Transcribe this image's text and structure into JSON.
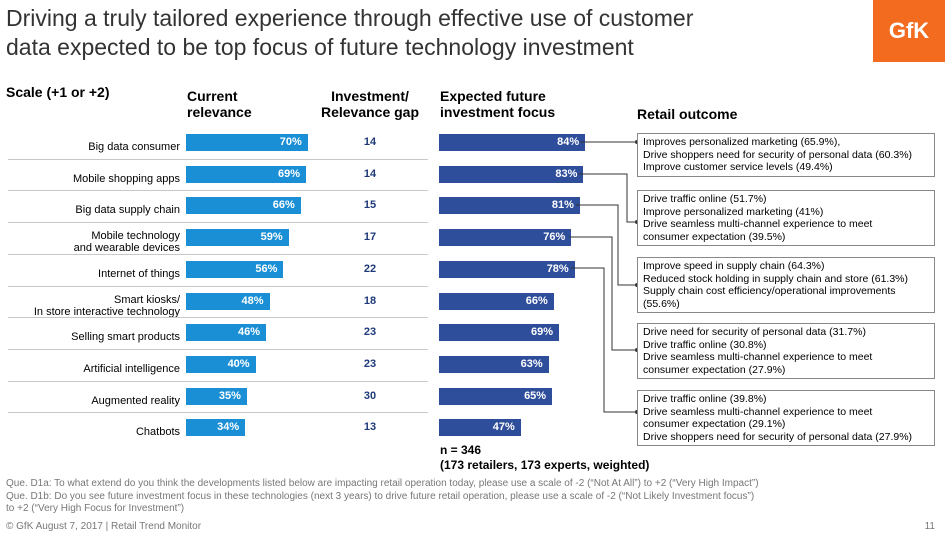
{
  "title_line1": "Driving a truly tailored experience through effective use of customer",
  "title_line2": "data expected to be top focus of future technology investment",
  "logo": "GfK",
  "headers": {
    "scale": "Scale (+1 or +2)",
    "current_l1": "Current",
    "current_l2": "relevance",
    "gap_l1": "Investment/",
    "gap_l2": "Relevance gap",
    "expected_l1": "Expected future",
    "expected_l2": "investment focus",
    "outcome": "Retail outcome"
  },
  "chart_data": {
    "type": "bar",
    "categories": [
      "Big data consumer",
      "Mobile shopping apps",
      "Big data supply chain",
      "Mobile technology and wearable devices",
      "Internet of things",
      "Smart kiosks/ In store interactive technology",
      "Selling smart products",
      "Artificial intelligence",
      "Augmented reality",
      "Chatbots"
    ],
    "label_lines": [
      [
        "Big data consumer"
      ],
      [
        "Mobile shopping apps"
      ],
      [
        "Big data supply chain"
      ],
      [
        "Mobile technology",
        "and wearable devices"
      ],
      [
        "Internet of things"
      ],
      [
        "Smart kiosks/",
        "In store interactive technology"
      ],
      [
        "Selling smart products"
      ],
      [
        "Artificial intelligence"
      ],
      [
        "Augmented reality"
      ],
      [
        "Chatbots"
      ]
    ],
    "series": [
      {
        "name": "Current relevance",
        "values": [
          70,
          69,
          66,
          59,
          56,
          48,
          46,
          40,
          35,
          34
        ],
        "color": "#1b8fd6"
      },
      {
        "name": "Expected future investment focus",
        "values": [
          84,
          83,
          81,
          76,
          78,
          66,
          69,
          63,
          65,
          47
        ],
        "color": "#2e4d9a"
      }
    ],
    "gap": [
      14,
      14,
      15,
      17,
      22,
      18,
      23,
      23,
      30,
      13
    ]
  },
  "outcomes": [
    [
      "Improves personalized marketing (65.9%),",
      "Drive shoppers need for security of personal data (60.3%)",
      "Improve customer service levels (49.4%)"
    ],
    [
      "Drive traffic online (51.7%)",
      "Improve personalized marketing (41%)",
      "Drive seamless multi-channel experience to meet",
      "consumer expectation (39.5%)"
    ],
    [
      "Improve speed in supply chain (64.3%)",
      "Reduced stock holding in supply chain and store (61.3%)",
      "Supply chain cost efficiency/operational improvements",
      "(55.6%)"
    ],
    [
      "Drive need for security of personal data (31.7%)",
      "Drive traffic online (30.8%)",
      "Drive seamless multi-channel experience to meet",
      "consumer expectation (27.9%)"
    ],
    [
      "Drive traffic online (39.8%)",
      "Drive seamless multi-channel experience to meet",
      "consumer expectation (29.1%)",
      "Drive shoppers need for security of personal data (27.9%)"
    ]
  ],
  "sample": {
    "line1": "n = 346",
    "line2": "(173 retailers, 173 experts, weighted)"
  },
  "notes": [
    "Que. D1a: To what extend do you think the developments listed below are impacting retail operation today, please use a scale of -2 (“Not At All”) to +2 (“Very High Impact”)",
    "Que. D1b: Do you see future investment focus in these technologies (next 3 years) to drive future retail operation, please use a scale of -2 (“Not Likely Investment focus”)",
    "to +2 (“Very High Focus for Investment”)"
  ],
  "footer": "© GfK August 7, 2017 | Retail Trend Monitor",
  "page_number": "11"
}
